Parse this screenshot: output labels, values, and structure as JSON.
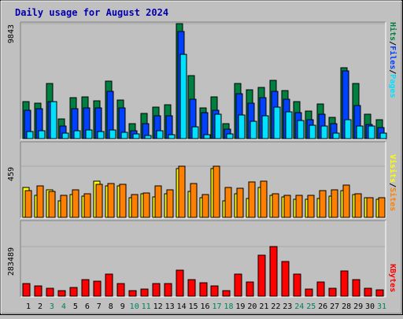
{
  "title": "Daily usage for August 2024",
  "colors": {
    "background": "#c0c0c0",
    "hits": "#008040",
    "files": "#0040ff",
    "pages": "#00e0ff",
    "visits": "#ffff00",
    "sites": "#ff8000",
    "kbytes": "#ff0000",
    "weekend_day": "#00805c",
    "weekday_day": "#000000"
  },
  "legend": {
    "pages": "Pages",
    "files": "Files",
    "hits": "Hits",
    "sites": "Sites",
    "visits": "Visits",
    "kbytes": "KBytes",
    "separator": "/"
  },
  "chart_data": [
    {
      "type": "bar",
      "panel": "hits-files-pages",
      "categories": [
        "1",
        "2",
        "3",
        "4",
        "5",
        "6",
        "7",
        "8",
        "9",
        "10",
        "11",
        "12",
        "13",
        "14",
        "15",
        "16",
        "17",
        "18",
        "19",
        "20",
        "21",
        "22",
        "23",
        "24",
        "25",
        "26",
        "27",
        "28",
        "29",
        "30",
        "31"
      ],
      "ymax_label": "9843",
      "ylim": [
        0,
        9843
      ],
      "series": [
        {
          "name": "Hits",
          "values": [
            3200,
            3050,
            4700,
            1700,
            3500,
            3600,
            3250,
            4950,
            3300,
            1300,
            2150,
            2700,
            2900,
            9843,
            5400,
            2650,
            3600,
            1300,
            4750,
            4150,
            4400,
            5000,
            4100,
            3200,
            2350,
            3000,
            1800,
            6100,
            4700,
            2100,
            1600
          ]
        },
        {
          "name": "Files",
          "values": [
            2400,
            2550,
            3200,
            1050,
            2550,
            2600,
            2650,
            4050,
            2600,
            700,
            1300,
            1950,
            1950,
            9200,
            3400,
            2200,
            2450,
            800,
            3850,
            3050,
            3500,
            4050,
            3350,
            2200,
            1600,
            2100,
            1250,
            5800,
            2850,
            1200,
            950
          ]
        },
        {
          "name": "Pages",
          "values": [
            600,
            650,
            3200,
            500,
            700,
            750,
            600,
            750,
            550,
            400,
            300,
            700,
            350,
            7200,
            1000,
            350,
            2100,
            400,
            2050,
            1450,
            1950,
            2700,
            2300,
            1550,
            1150,
            1100,
            500,
            1600,
            1100,
            1050,
            500
          ]
        }
      ]
    },
    {
      "type": "bar",
      "panel": "visits-sites",
      "categories": [
        "1",
        "2",
        "3",
        "4",
        "5",
        "6",
        "7",
        "8",
        "9",
        "10",
        "11",
        "12",
        "13",
        "14",
        "15",
        "16",
        "17",
        "18",
        "19",
        "20",
        "21",
        "22",
        "23",
        "24",
        "25",
        "26",
        "27",
        "28",
        "29",
        "30",
        "31"
      ],
      "ymax_label": "459",
      "ylim": [
        0,
        459
      ],
      "series": [
        {
          "name": "Visits",
          "values": [
            265,
            200,
            250,
            145,
            205,
            190,
            325,
            285,
            280,
            180,
            210,
            185,
            215,
            435,
            235,
            175,
            435,
            150,
            215,
            170,
            270,
            195,
            185,
            160,
            165,
            170,
            190,
            240,
            205,
            175,
            165
          ]
        },
        {
          "name": "Sites",
          "values": [
            240,
            285,
            235,
            195,
            250,
            210,
            300,
            305,
            295,
            205,
            220,
            280,
            250,
            459,
            305,
            205,
            459,
            270,
            260,
            320,
            325,
            210,
            200,
            195,
            200,
            240,
            250,
            290,
            215,
            180,
            180
          ]
        }
      ]
    },
    {
      "type": "bar",
      "panel": "kbytes",
      "categories": [
        "1",
        "2",
        "3",
        "4",
        "5",
        "6",
        "7",
        "8",
        "9",
        "10",
        "11",
        "12",
        "13",
        "14",
        "15",
        "16",
        "17",
        "18",
        "19",
        "20",
        "21",
        "22",
        "23",
        "24",
        "25",
        "26",
        "27",
        "28",
        "29",
        "30",
        "31"
      ],
      "ymax_label": "283489",
      "ylim": [
        0,
        283489
      ],
      "series": [
        {
          "name": "KBytes",
          "values": [
            70000,
            60000,
            45000,
            30000,
            50000,
            95000,
            85000,
            125000,
            70000,
            30000,
            40000,
            70000,
            70000,
            150000,
            95000,
            75000,
            60000,
            30000,
            125000,
            80000,
            235000,
            283489,
            200000,
            125000,
            40000,
            80000,
            45000,
            145000,
            95000,
            45000,
            35000
          ]
        }
      ]
    }
  ],
  "weekend_days": [
    3,
    4,
    10,
    11,
    17,
    18,
    24,
    25,
    31
  ]
}
